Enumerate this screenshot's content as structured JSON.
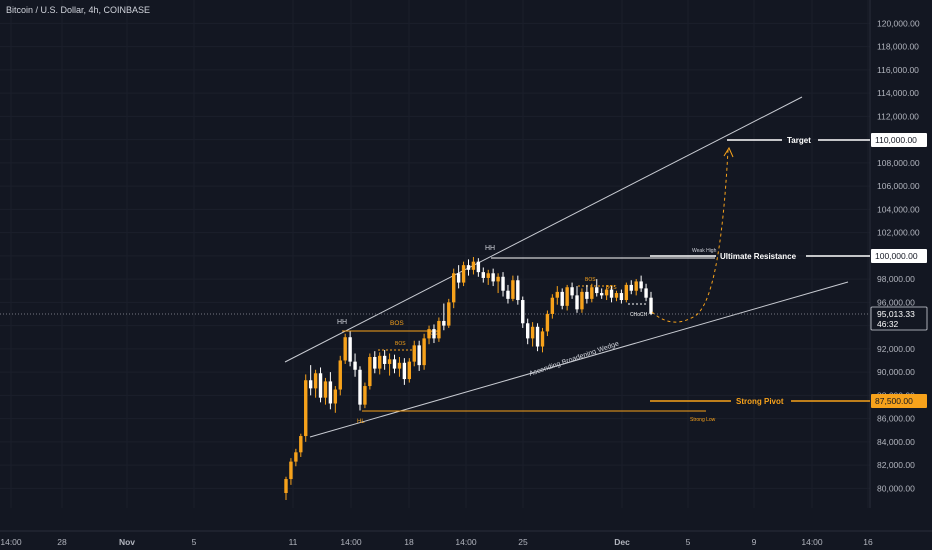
{
  "header": {
    "title": "Bitcoin / U.S. Dollar, 4h, COINBASE"
  },
  "colors": {
    "bg": "#131722",
    "grid": "#1b1f2b",
    "text": "#d1d4dc",
    "axis_text": "#b2b5be",
    "up": "#f7a21b",
    "down": "#ffffff",
    "orange": "#f7a21b",
    "line": "#c8cbd2"
  },
  "chart_data": {
    "type": "candlestick",
    "symbol": "Bitcoin / U.S. Dollar",
    "timeframe": "4h",
    "exchange": "COINBASE",
    "y_axis": {
      "ticks": [
        "120,000.00",
        "118,000.00",
        "116,000.00",
        "114,000.00",
        "112,000.00",
        "110,000.00",
        "108,000.00",
        "106,000.00",
        "104,000.00",
        "102,000.00",
        "100,000.00",
        "98,000.00",
        "96,000.00",
        "94,000.00",
        "92,000.00",
        "90,000.00",
        "88,000.00",
        "86,000.00",
        "84,000.00",
        "82,000.00",
        "80,000.00"
      ],
      "tick_values": [
        120000,
        118000,
        116000,
        114000,
        112000,
        110000,
        108000,
        106000,
        104000,
        102000,
        100000,
        98000,
        96000,
        94000,
        92000,
        90000,
        88000,
        86000,
        84000,
        82000,
        80000
      ],
      "range": [
        79000,
        121000
      ]
    },
    "x_axis": {
      "ticks": [
        "14:00",
        "28",
        "Nov",
        "5",
        "11",
        "14:00",
        "18",
        "14:00",
        "25",
        "Dec",
        "5",
        "9",
        "14:00",
        "16"
      ],
      "range": [
        "2024-10-24",
        "2024-12-16"
      ]
    },
    "price_labels": [
      {
        "text": "110,000.00",
        "value": 110000,
        "style": "white"
      },
      {
        "text": "100,000.00",
        "value": 100000,
        "style": "white"
      },
      {
        "text": "95,013.33",
        "sub": "46:32",
        "value": 95013.33,
        "style": "current"
      },
      {
        "text": "87,500.00",
        "value": 87500,
        "style": "orange"
      }
    ],
    "levels": [
      {
        "label": "Target",
        "value": 110000
      },
      {
        "label": "Ultimate Resistance",
        "value": 100000
      },
      {
        "label": "Strong Pivot",
        "value": 87500
      }
    ],
    "annotations": [
      "HH",
      "HH",
      "BOS",
      "BOS",
      "BOS",
      "BOS",
      "BOS",
      "HL",
      "Strong Low",
      "Weak High",
      "CHoCH",
      "Ascending Broadening Wedge"
    ],
    "candles": [
      {
        "o": 79600,
        "h": 81000,
        "l": 79000,
        "c": 80800
      },
      {
        "o": 80800,
        "h": 82600,
        "l": 80300,
        "c": 82300
      },
      {
        "o": 82300,
        "h": 83400,
        "l": 81900,
        "c": 83100
      },
      {
        "o": 83100,
        "h": 84700,
        "l": 82700,
        "c": 84500
      },
      {
        "o": 84500,
        "h": 89800,
        "l": 84000,
        "c": 89300
      },
      {
        "o": 89300,
        "h": 90600,
        "l": 88000,
        "c": 88600
      },
      {
        "o": 88600,
        "h": 90200,
        "l": 87800,
        "c": 89900
      },
      {
        "o": 89900,
        "h": 90400,
        "l": 87400,
        "c": 87800
      },
      {
        "o": 87800,
        "h": 89500,
        "l": 87200,
        "c": 89200
      },
      {
        "o": 89200,
        "h": 90000,
        "l": 86800,
        "c": 87300
      },
      {
        "o": 87300,
        "h": 88800,
        "l": 86500,
        "c": 88500
      },
      {
        "o": 88500,
        "h": 91400,
        "l": 88000,
        "c": 91000
      },
      {
        "o": 91000,
        "h": 93300,
        "l": 90700,
        "c": 93000
      },
      {
        "o": 93000,
        "h": 93500,
        "l": 90500,
        "c": 90900
      },
      {
        "o": 90900,
        "h": 91600,
        "l": 89600,
        "c": 90200
      },
      {
        "o": 90200,
        "h": 90500,
        "l": 86700,
        "c": 87200
      },
      {
        "o": 87200,
        "h": 89100,
        "l": 86900,
        "c": 88800
      },
      {
        "o": 88800,
        "h": 91600,
        "l": 88500,
        "c": 91300
      },
      {
        "o": 91300,
        "h": 91800,
        "l": 89900,
        "c": 90300
      },
      {
        "o": 90300,
        "h": 91700,
        "l": 89800,
        "c": 91400
      },
      {
        "o": 91400,
        "h": 91900,
        "l": 90200,
        "c": 90700
      },
      {
        "o": 90700,
        "h": 91600,
        "l": 89700,
        "c": 91100
      },
      {
        "o": 91100,
        "h": 91500,
        "l": 89900,
        "c": 90300
      },
      {
        "o": 90300,
        "h": 91300,
        "l": 89600,
        "c": 90800
      },
      {
        "o": 90800,
        "h": 91200,
        "l": 88900,
        "c": 89400
      },
      {
        "o": 89400,
        "h": 91200,
        "l": 89100,
        "c": 90900
      },
      {
        "o": 90900,
        "h": 92700,
        "l": 90500,
        "c": 92300
      },
      {
        "o": 92300,
        "h": 92700,
        "l": 90100,
        "c": 90600
      },
      {
        "o": 90600,
        "h": 93300,
        "l": 90200,
        "c": 92900
      },
      {
        "o": 92900,
        "h": 94000,
        "l": 92400,
        "c": 93700
      },
      {
        "o": 93700,
        "h": 94100,
        "l": 92500,
        "c": 92900
      },
      {
        "o": 92900,
        "h": 94700,
        "l": 92600,
        "c": 94400
      },
      {
        "o": 94400,
        "h": 95900,
        "l": 93600,
        "c": 94000
      },
      {
        "o": 94000,
        "h": 96300,
        "l": 93800,
        "c": 96000
      },
      {
        "o": 96000,
        "h": 98900,
        "l": 95500,
        "c": 98500
      },
      {
        "o": 98500,
        "h": 99200,
        "l": 97200,
        "c": 97700
      },
      {
        "o": 97700,
        "h": 99500,
        "l": 97400,
        "c": 99200
      },
      {
        "o": 99200,
        "h": 99700,
        "l": 98300,
        "c": 98800
      },
      {
        "o": 98800,
        "h": 99900,
        "l": 98400,
        "c": 99500
      },
      {
        "o": 99500,
        "h": 99800,
        "l": 98200,
        "c": 98600
      },
      {
        "o": 98600,
        "h": 99000,
        "l": 97700,
        "c": 98100
      },
      {
        "o": 98100,
        "h": 98800,
        "l": 97500,
        "c": 98500
      },
      {
        "o": 98500,
        "h": 98900,
        "l": 97400,
        "c": 97800
      },
      {
        "o": 97800,
        "h": 98500,
        "l": 96800,
        "c": 98200
      },
      {
        "o": 98200,
        "h": 98600,
        "l": 96500,
        "c": 97000
      },
      {
        "o": 97000,
        "h": 97500,
        "l": 95900,
        "c": 96300
      },
      {
        "o": 96300,
        "h": 98300,
        "l": 96100,
        "c": 97900
      },
      {
        "o": 97900,
        "h": 98300,
        "l": 95800,
        "c": 96200
      },
      {
        "o": 96200,
        "h": 96500,
        "l": 93800,
        "c": 94200
      },
      {
        "o": 94200,
        "h": 94600,
        "l": 92400,
        "c": 92900
      },
      {
        "o": 92900,
        "h": 94300,
        "l": 92200,
        "c": 93900
      },
      {
        "o": 93900,
        "h": 94200,
        "l": 91800,
        "c": 92200
      },
      {
        "o": 92200,
        "h": 93800,
        "l": 91700,
        "c": 93500
      },
      {
        "o": 93500,
        "h": 95300,
        "l": 93100,
        "c": 95000
      },
      {
        "o": 95000,
        "h": 96700,
        "l": 94600,
        "c": 96400
      },
      {
        "o": 96400,
        "h": 97400,
        "l": 95800,
        "c": 96900
      },
      {
        "o": 96900,
        "h": 97200,
        "l": 95400,
        "c": 95700
      },
      {
        "o": 95700,
        "h": 97500,
        "l": 95300,
        "c": 97300
      },
      {
        "o": 97300,
        "h": 97700,
        "l": 96300,
        "c": 96600
      },
      {
        "o": 96600,
        "h": 97400,
        "l": 95100,
        "c": 95400
      },
      {
        "o": 95400,
        "h": 97200,
        "l": 95100,
        "c": 96900
      },
      {
        "o": 96900,
        "h": 97500,
        "l": 95900,
        "c": 96300
      },
      {
        "o": 96300,
        "h": 97600,
        "l": 96000,
        "c": 97300
      },
      {
        "o": 97300,
        "h": 98000,
        "l": 96500,
        "c": 96800
      },
      {
        "o": 96800,
        "h": 97200,
        "l": 96300,
        "c": 96600
      },
      {
        "o": 96600,
        "h": 97300,
        "l": 96200,
        "c": 97100
      },
      {
        "o": 97100,
        "h": 97400,
        "l": 96000,
        "c": 96400
      },
      {
        "o": 96400,
        "h": 97000,
        "l": 96100,
        "c": 96800
      },
      {
        "o": 96800,
        "h": 97100,
        "l": 95900,
        "c": 96200
      },
      {
        "o": 96200,
        "h": 97700,
        "l": 96000,
        "c": 97500
      },
      {
        "o": 97500,
        "h": 97900,
        "l": 96700,
        "c": 97000
      },
      {
        "o": 97000,
        "h": 98000,
        "l": 96600,
        "c": 97800
      },
      {
        "o": 97800,
        "h": 98300,
        "l": 96900,
        "c": 97200
      },
      {
        "o": 97200,
        "h": 97600,
        "l": 96100,
        "c": 96400
      },
      {
        "o": 96400,
        "h": 96900,
        "l": 94900,
        "c": 95013
      }
    ]
  }
}
